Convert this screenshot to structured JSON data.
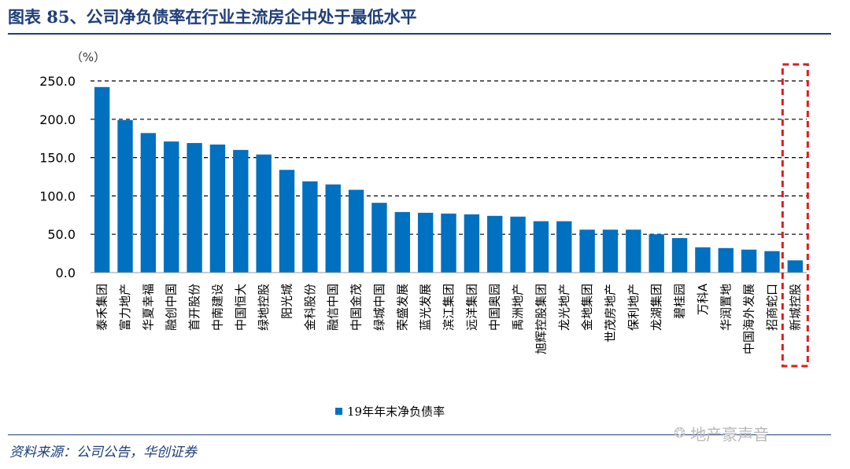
{
  "figure": {
    "title": "图表 85、公司净负债率在行业主流房企中处于最低水平",
    "source": "资料来源：公司公告，华创证券",
    "watermark": "地产豪声音",
    "watermark_icon": "wechat-icon"
  },
  "colors": {
    "bar": "#0070c0",
    "highlight": "#e41a1c",
    "title": "#1f3f7a"
  },
  "chart_data": {
    "type": "bar",
    "title": "",
    "unit_label": "（%）",
    "ylabel": "",
    "xlabel": "",
    "ylim": [
      0,
      250
    ],
    "yticks": [
      "0.0",
      "50.0",
      "100.0",
      "150.0",
      "200.0",
      "250.0"
    ],
    "grid": "dashed-horizontal",
    "legend": "bottom-center",
    "categories": [
      "泰禾集团",
      "富力地产",
      "华夏幸福",
      "融创中国",
      "首开股份",
      "中南建设",
      "中国恒大",
      "绿地控股",
      "阳光城",
      "金科股份",
      "融信中国",
      "中国金茂",
      "绿城中国",
      "荣盛发展",
      "蓝光发展",
      "滨江集团",
      "远洋集团",
      "中国奥园",
      "禹洲地产",
      "旭辉控股集团",
      "龙光地产",
      "金地集团",
      "世茂房地产",
      "保利地产",
      "龙湖集团",
      "碧桂园",
      "万科A",
      "华润置地",
      "中国海外发展",
      "招商蛇口",
      "新城控股"
    ],
    "series": [
      {
        "name": "19年年末净负债率",
        "values": [
          242,
          199,
          182,
          171,
          169,
          167,
          160,
          154,
          134,
          119,
          115,
          108,
          91,
          79,
          78,
          77,
          76,
          74,
          73,
          67,
          67,
          56,
          56,
          56,
          50,
          45,
          33,
          32,
          30,
          28,
          16
        ]
      }
    ],
    "highlighted_category": "新城控股"
  }
}
